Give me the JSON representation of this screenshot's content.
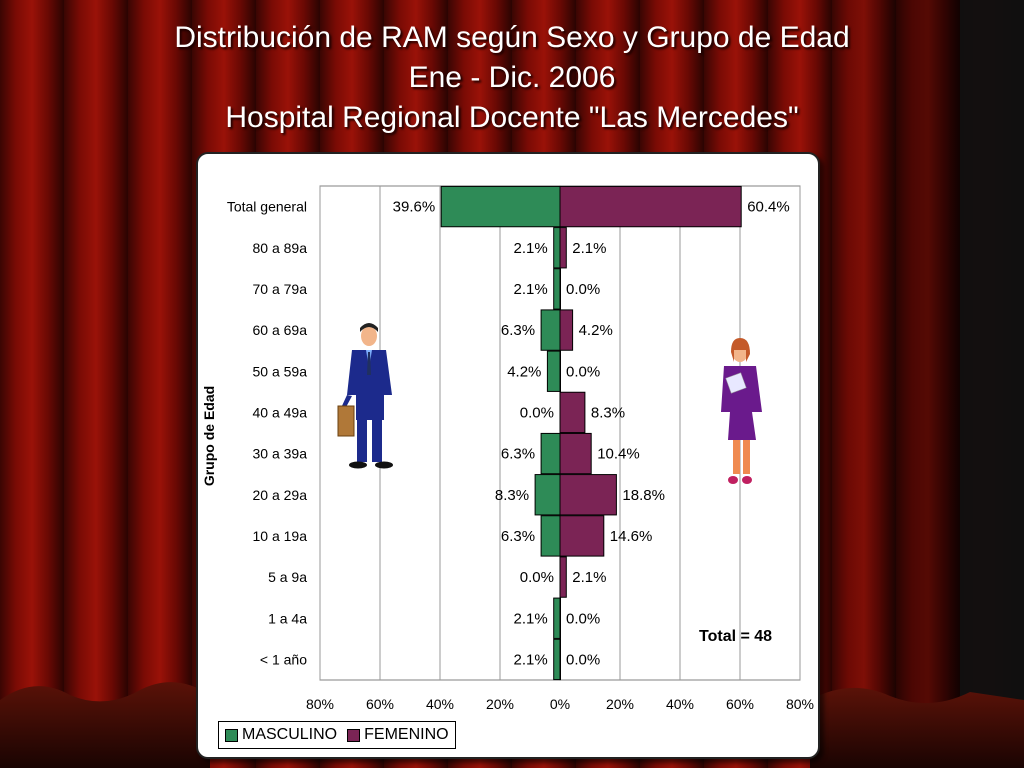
{
  "slide": {
    "title_lines": [
      "Distribución de RAM según Sexo y Grupo de Edad",
      "Ene - Dic. 2006",
      "Hospital Regional Docente \"Las Mercedes\""
    ]
  },
  "colors": {
    "masculino": "#2e8b57",
    "femenino": "#7b2455",
    "curtain": "#8b0a05"
  },
  "icons": [
    "businessman-clipart",
    "businesswoman-clipart"
  ],
  "note": "Total = 48",
  "chart_data": {
    "type": "bar",
    "orientation": "horizontal-diverging",
    "ylabel": "Grupo de Edad",
    "categories": [
      "Total general",
      "80 a 89a",
      "70 a 79a",
      "60 a 69a",
      "50 a 59a",
      "40 a 49a",
      "30 a 39a",
      "20 a 29a",
      "10 a 19a",
      "5 a 9a",
      "1 a 4a",
      "< 1 año"
    ],
    "series": [
      {
        "name": "MASCULINO",
        "values": [
          39.6,
          2.1,
          2.1,
          6.3,
          4.2,
          0.0,
          6.3,
          8.3,
          6.3,
          0.0,
          2.1,
          2.1
        ],
        "labels": [
          "39.6%",
          "2.1%",
          "2.1%",
          "6.3%",
          "4.2%",
          "0.0%",
          "6.3%",
          "8.3%",
          "6.3%",
          "0.0%",
          "2.1%",
          "2.1%"
        ]
      },
      {
        "name": "FEMENINO",
        "values": [
          60.4,
          2.1,
          0.0,
          4.2,
          0.0,
          8.3,
          10.4,
          18.8,
          14.6,
          2.1,
          0.0,
          0.0
        ],
        "labels": [
          "60.4%",
          "2.1%",
          "0.0%",
          "4.2%",
          "0.0%",
          "8.3%",
          "10.4%",
          "18.8%",
          "14.6%",
          "2.1%",
          "0.0%",
          "0.0%"
        ]
      }
    ],
    "xlim": [
      -80,
      80
    ],
    "xticks": [
      -80,
      -60,
      -40,
      -20,
      0,
      20,
      40,
      60,
      80
    ],
    "xtick_labels": [
      "80%",
      "60%",
      "40%",
      "20%",
      "0%",
      "20%",
      "40%",
      "60%",
      "80%"
    ],
    "grid": "vertical",
    "legend_position": "bottom-left"
  }
}
